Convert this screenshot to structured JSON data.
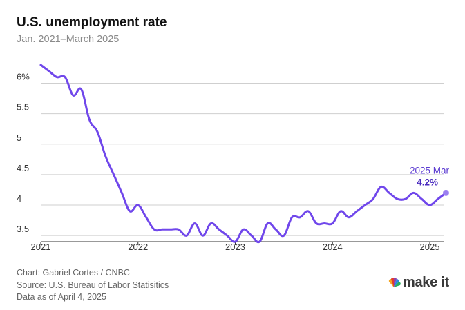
{
  "header": {
    "title": "U.S. unemployment rate",
    "subtitle": "Jan. 2021–March 2025"
  },
  "footer": {
    "chart_credit": "Chart: Gabriel Cortes / CNBC",
    "source": "Source: U.S. Bureau of Labor Statisitics",
    "data_date": "Data as of April 4, 2025"
  },
  "logo": {
    "text": "make it",
    "small_text": "CNBC"
  },
  "colors": {
    "line": "#7047eb",
    "point": "#9b7ff0",
    "annotation": "#5b3bd1",
    "grid": "#cfcfcf"
  },
  "chart_data": {
    "type": "line",
    "title": "U.S. unemployment rate",
    "subtitle": "Jan. 2021–March 2025",
    "xlabel": "",
    "ylabel": "",
    "x_tick_labels": [
      "2021",
      "2022",
      "2023",
      "2024",
      "2025"
    ],
    "y_tick_labels": [
      "3.5",
      "4",
      "4.5",
      "5",
      "5.5",
      "6%"
    ],
    "y_ticks": [
      3.5,
      4,
      4.5,
      5,
      5.5,
      6
    ],
    "ylim": [
      3.4,
      6.3
    ],
    "grid": "horizontal",
    "annotation": {
      "date_label": "2025 Mar",
      "value_label": "4.2%"
    },
    "series": [
      {
        "x": [
          "2021-01",
          "2021-02",
          "2021-03",
          "2021-04",
          "2021-05",
          "2021-06",
          "2021-07",
          "2021-08",
          "2021-09",
          "2021-10",
          "2021-11",
          "2021-12",
          "2022-01",
          "2022-02",
          "2022-03",
          "2022-04",
          "2022-05",
          "2022-06",
          "2022-07",
          "2022-08",
          "2022-09",
          "2022-10",
          "2022-11",
          "2022-12",
          "2023-01",
          "2023-02",
          "2023-03",
          "2023-04",
          "2023-05",
          "2023-06",
          "2023-07",
          "2023-08",
          "2023-09",
          "2023-10",
          "2023-11",
          "2023-12",
          "2024-01",
          "2024-02",
          "2024-03",
          "2024-04",
          "2024-05",
          "2024-06",
          "2024-07",
          "2024-08",
          "2024-09",
          "2024-10",
          "2024-11",
          "2024-12",
          "2025-01",
          "2025-02",
          "2025-03"
        ],
        "values": [
          6.3,
          6.2,
          6.1,
          6.1,
          5.8,
          5.9,
          5.4,
          5.2,
          4.8,
          4.5,
          4.2,
          3.9,
          4.0,
          3.8,
          3.6,
          3.6,
          3.6,
          3.6,
          3.5,
          3.7,
          3.5,
          3.7,
          3.6,
          3.5,
          3.4,
          3.6,
          3.5,
          3.4,
          3.7,
          3.6,
          3.5,
          3.8,
          3.8,
          3.9,
          3.7,
          3.7,
          3.7,
          3.9,
          3.8,
          3.9,
          4.0,
          4.1,
          4.3,
          4.2,
          4.1,
          4.1,
          4.2,
          4.1,
          4.0,
          4.1,
          4.2
        ]
      }
    ]
  }
}
